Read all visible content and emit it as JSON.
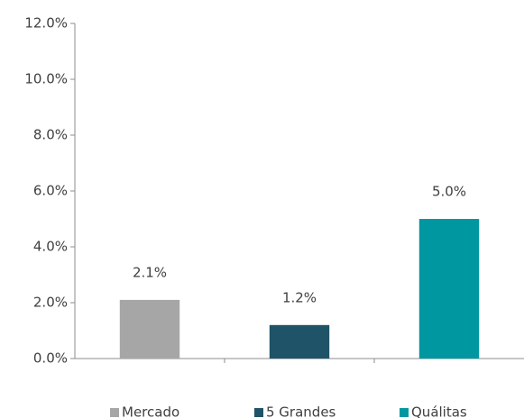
{
  "chart_data": {
    "type": "bar",
    "categories": [
      "Mercado",
      "5 Grandes",
      "Quálitas"
    ],
    "values": [
      2.1,
      1.2,
      5.0
    ],
    "value_labels": [
      "2.1%",
      "1.2%",
      "5.0%"
    ],
    "colors": [
      "#a6a6a6",
      "#1f5367",
      "#0097a0"
    ],
    "ylim": [
      0,
      12
    ],
    "yticks": [
      {
        "value": 0,
        "label": "0.0%"
      },
      {
        "value": 2,
        "label": "2.0%"
      },
      {
        "value": 4,
        "label": "4.0%"
      },
      {
        "value": 6,
        "label": "6.0%"
      },
      {
        "value": 8,
        "label": "8.0%"
      },
      {
        "value": 10,
        "label": "10.0%"
      },
      {
        "value": 12,
        "label": "12.0%"
      }
    ],
    "grid": false,
    "legend": "bottom"
  }
}
